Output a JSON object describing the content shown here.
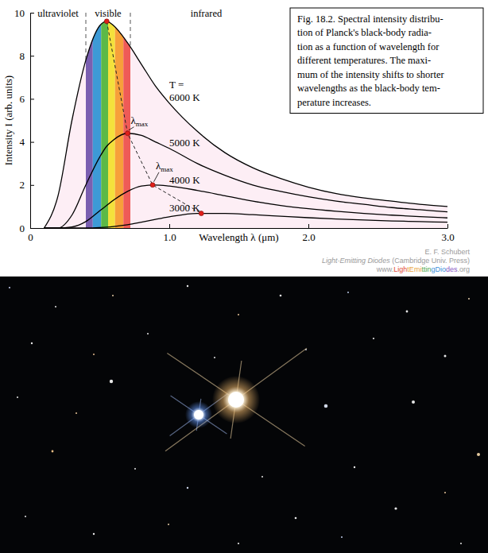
{
  "chart_data": {
    "type": "line",
    "caption": [
      "Fig. 18.2. Spectral intensity distribu-",
      "tion of Planck's black-body radia-",
      "tion as a function of wavelength for",
      "different temperatures. The maxi-",
      "mum of the intensity shifts to shorter",
      "wavelengths as the black-body tem-",
      "perature increases."
    ],
    "x_label": "Wavelength λ (μm)",
    "y_label": "Intensity I (arb. units)",
    "xlim": [
      0,
      3
    ],
    "ylim": [
      0,
      10
    ],
    "xticks": [
      0,
      {
        "value": 1,
        "label": "1.0"
      },
      {
        "value": 2,
        "label": "2.0"
      },
      {
        "value": 3,
        "label": "3.0"
      }
    ],
    "yticks": [
      0,
      2,
      4,
      6,
      8,
      10
    ],
    "grid": false,
    "x": [
      0.1,
      0.2,
      0.3,
      0.4,
      0.5,
      0.55,
      0.6,
      0.7,
      0.8,
      0.9,
      1.0,
      1.2,
      1.4,
      1.6,
      1.8,
      2.0,
      2.2,
      2.4,
      2.6,
      2.8,
      3.0
    ],
    "series_label_title": "T =",
    "series": [
      {
        "name": "6000 K",
        "color": "#000000",
        "values": [
          0,
          1.5,
          5.0,
          7.8,
          9.4,
          9.6,
          9.4,
          8.6,
          7.6,
          6.6,
          5.8,
          4.5,
          3.5,
          2.8,
          2.3,
          1.9,
          1.6,
          1.4,
          1.25,
          1.1,
          1.0
        ]
      },
      {
        "name": "5000 K",
        "color": "#000000",
        "values": [
          0,
          0,
          0.6,
          2.0,
          3.3,
          3.8,
          4.1,
          4.4,
          4.3,
          4.0,
          3.7,
          3.0,
          2.45,
          2.0,
          1.7,
          1.45,
          1.25,
          1.1,
          0.95,
          0.85,
          0.75
        ]
      },
      {
        "name": "4000 K",
        "color": "#000000",
        "values": [
          0,
          0,
          0.05,
          0.3,
          0.8,
          1.05,
          1.3,
          1.7,
          1.95,
          2.0,
          1.95,
          1.75,
          1.5,
          1.25,
          1.05,
          0.9,
          0.78,
          0.68,
          0.6,
          0.53,
          0.47
        ]
      },
      {
        "name": "3000 K",
        "color": "#000000",
        "values": [
          0,
          0,
          0,
          0,
          0.02,
          0.04,
          0.07,
          0.15,
          0.27,
          0.4,
          0.52,
          0.68,
          0.68,
          0.62,
          0.55,
          0.48,
          0.42,
          0.37,
          0.33,
          0.3,
          0.27
        ]
      }
    ],
    "lambda_max": {
      "label": "λmax",
      "x": [
        0.55,
        0.7,
        0.88,
        1.23
      ],
      "values": [
        9.6,
        4.4,
        2.0,
        0.68
      ],
      "color": "#e0201b",
      "marker": "circle",
      "line_style": "dashed"
    },
    "regions": [
      {
        "label": "ultraviolet",
        "range": [
          0,
          0.4
        ]
      },
      {
        "label": "visible",
        "range": [
          0.4,
          0.72
        ]
      },
      {
        "label": "infrared",
        "range": [
          0.72,
          3.0
        ]
      }
    ],
    "spectrum": {
      "edges": [
        0.4,
        0.45,
        0.51,
        0.56,
        0.61,
        0.67,
        0.72
      ],
      "colors": [
        "#7a5fb0",
        "#3d9ad6",
        "#5cb947",
        "#f4e13c",
        "#f7a03a",
        "#ef5b57"
      ]
    },
    "credit": [
      "E. F. Schubert",
      "Light-Emitting Diodes (Cambridge Univ. Press)",
      "www.LightEmittingDiodes.org"
    ]
  }
}
